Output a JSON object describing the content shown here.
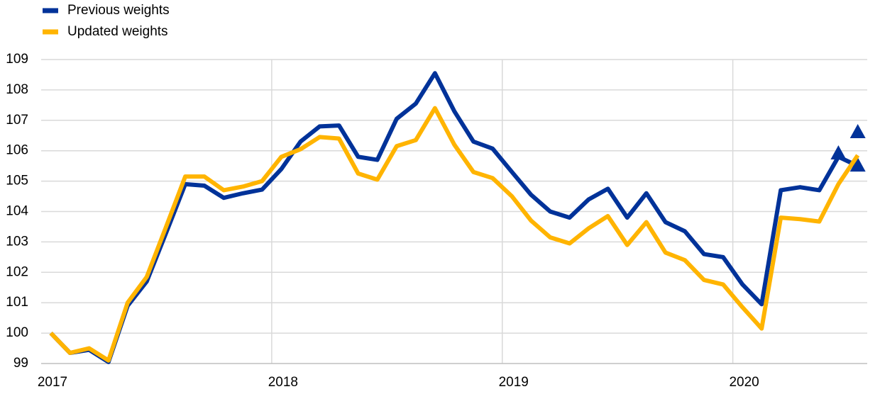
{
  "chart_data": {
    "type": "line",
    "x": [
      2017.042,
      2017.125,
      2017.208,
      2017.292,
      2017.375,
      2017.458,
      2017.542,
      2017.625,
      2017.708,
      2017.792,
      2017.875,
      2017.958,
      2018.042,
      2018.125,
      2018.208,
      2018.292,
      2018.375,
      2018.458,
      2018.542,
      2018.625,
      2018.708,
      2018.792,
      2018.875,
      2018.958,
      2019.042,
      2019.125,
      2019.208,
      2019.292,
      2019.375,
      2019.458,
      2019.542,
      2019.625,
      2019.708,
      2019.792,
      2019.875,
      2019.958,
      2020.042,
      2020.125,
      2020.208,
      2020.292,
      2020.375,
      2020.458,
      2020.542
    ],
    "series": [
      {
        "name": "Previous weights",
        "color": "#003299",
        "values": [
          100.0,
          99.35,
          99.45,
          99.05,
          100.9,
          101.7,
          103.3,
          104.9,
          104.85,
          104.45,
          104.6,
          104.72,
          105.4,
          106.3,
          106.8,
          106.83,
          105.8,
          105.7,
          107.05,
          107.55,
          108.55,
          107.3,
          106.3,
          106.07,
          105.3,
          104.55,
          104.0,
          103.8,
          104.4,
          104.75,
          103.8,
          104.6,
          103.65,
          103.35,
          102.6,
          102.5,
          101.6,
          100.95,
          104.7,
          104.8,
          104.7,
          105.8,
          105.5
        ],
        "markers": {
          "x": [
            2020.458,
            2020.542,
            2020.542
          ],
          "values": [
            105.9,
            106.6,
            105.5
          ]
        }
      },
      {
        "name": "Updated weights",
        "color": "#ffb400",
        "values": [
          100.0,
          99.35,
          99.5,
          99.1,
          101.0,
          101.85,
          103.5,
          105.15,
          105.15,
          104.7,
          104.82,
          105.0,
          105.8,
          106.05,
          106.45,
          106.4,
          105.25,
          105.05,
          106.15,
          106.35,
          107.4,
          106.2,
          105.3,
          105.1,
          104.5,
          103.7,
          103.15,
          102.95,
          103.45,
          103.85,
          102.9,
          103.65,
          102.65,
          102.4,
          101.75,
          101.6,
          100.85,
          100.15,
          103.8,
          103.75,
          103.67,
          104.9,
          105.85
        ]
      }
    ],
    "xlim": [
      2017,
      2020.583
    ],
    "xticks": [
      2017,
      2018,
      2019,
      2020
    ],
    "ylim": [
      99,
      109
    ],
    "yticks": [
      99,
      100,
      101,
      102,
      103,
      104,
      105,
      106,
      107,
      108,
      109
    ],
    "grid": true,
    "legend": "top-left"
  }
}
